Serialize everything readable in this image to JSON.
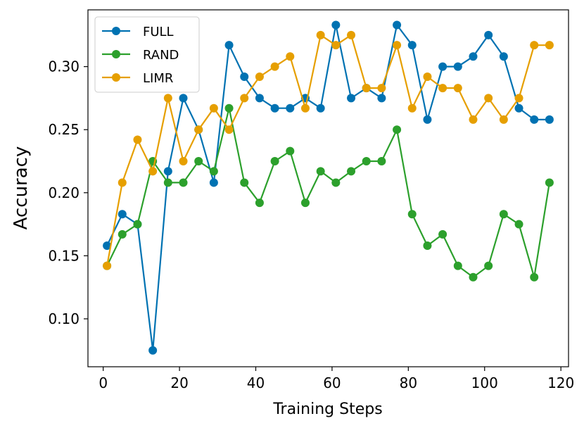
{
  "chart_data": {
    "type": "line",
    "title": "",
    "xlabel": "Training Steps",
    "ylabel": "Accuracy",
    "xlim": [
      -4,
      122
    ],
    "ylim": [
      0.062,
      0.345
    ],
    "xticks": [
      0,
      20,
      40,
      60,
      80,
      100,
      120
    ],
    "yticks": [
      0.1,
      0.15,
      0.2,
      0.25,
      0.3
    ],
    "xtick_labels": [
      "0",
      "20",
      "40",
      "60",
      "80",
      "100",
      "120"
    ],
    "ytick_labels": [
      "0.10",
      "0.15",
      "0.20",
      "0.25",
      "0.30"
    ],
    "grid": false,
    "legend_position": "top-left",
    "x": [
      1,
      5,
      9,
      13,
      17,
      21,
      25,
      29,
      33,
      37,
      41,
      45,
      49,
      53,
      57,
      61,
      65,
      69,
      73,
      77,
      81,
      85,
      89,
      93,
      97,
      101,
      105,
      109,
      113,
      117
    ],
    "series": [
      {
        "name": "FULL",
        "color": "#0072b2",
        "values": [
          0.158,
          0.183,
          0.175,
          0.075,
          0.217,
          0.275,
          0.25,
          0.208,
          0.317,
          0.292,
          0.275,
          0.267,
          0.267,
          0.275,
          0.267,
          0.333,
          0.275,
          0.283,
          0.275,
          0.333,
          0.317,
          0.258,
          0.3,
          0.3,
          0.308,
          0.325,
          0.308,
          0.267,
          0.258,
          0.258
        ]
      },
      {
        "name": "RAND",
        "color": "#2ca02c",
        "values": [
          0.142,
          0.167,
          0.175,
          0.225,
          0.208,
          0.208,
          0.225,
          0.217,
          0.267,
          0.208,
          0.192,
          0.225,
          0.233,
          0.192,
          0.217,
          0.208,
          0.217,
          0.225,
          0.225,
          0.25,
          0.183,
          0.158,
          0.167,
          0.142,
          0.133,
          0.142,
          0.183,
          0.175,
          0.133,
          0.208
        ]
      },
      {
        "name": "LIMR",
        "color": "#e69f00",
        "values": [
          0.142,
          0.208,
          0.242,
          0.217,
          0.275,
          0.225,
          0.25,
          0.267,
          0.25,
          0.275,
          0.292,
          0.3,
          0.308,
          0.267,
          0.325,
          0.317,
          0.325,
          0.283,
          0.283,
          0.317,
          0.267,
          0.292,
          0.283,
          0.283,
          0.258,
          0.275,
          0.258,
          0.275,
          0.317,
          0.317
        ]
      }
    ]
  }
}
